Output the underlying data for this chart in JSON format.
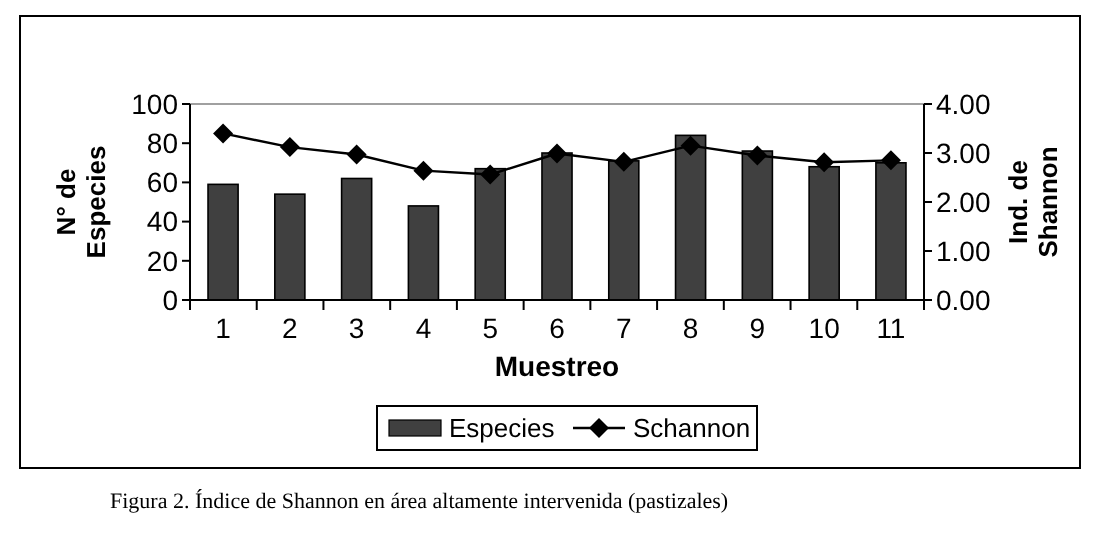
{
  "chart_data": {
    "type": "bar",
    "xlabel": "Muestreo",
    "ylabel": "N° de Especies",
    "y2label": "Ind. de Shannon",
    "categories": [
      "1",
      "2",
      "3",
      "4",
      "5",
      "6",
      "7",
      "8",
      "9",
      "10",
      "11"
    ],
    "series": [
      {
        "name": "Especies",
        "color": "#404040",
        "values": [
          59,
          54,
          62,
          48,
          67,
          75,
          71,
          84,
          76,
          68,
          70
        ]
      },
      {
        "name": "Schannon",
        "type": "line",
        "axis": "y2",
        "color": "#000000",
        "marker": "diamond",
        "values": [
          3.4,
          3.12,
          2.97,
          2.64,
          2.56,
          2.99,
          2.82,
          3.15,
          2.95,
          2.81,
          2.85
        ]
      }
    ],
    "ylim": [
      0,
      100
    ],
    "yticks": [
      0,
      20,
      40,
      60,
      80,
      100
    ],
    "y2lim": [
      0,
      4
    ],
    "y2ticks": [
      {
        "value": 0,
        "label": "0.00"
      },
      {
        "value": 1,
        "label": "1.00"
      },
      {
        "value": 2,
        "label": "2.00"
      },
      {
        "value": 3,
        "label": "3.00"
      },
      {
        "value": 4,
        "label": "4.00"
      }
    ],
    "legend": "bottom",
    "annotations": [
      "Figura 2. Índice de Shannon en área altamente intervenida (pastizales)"
    ]
  }
}
